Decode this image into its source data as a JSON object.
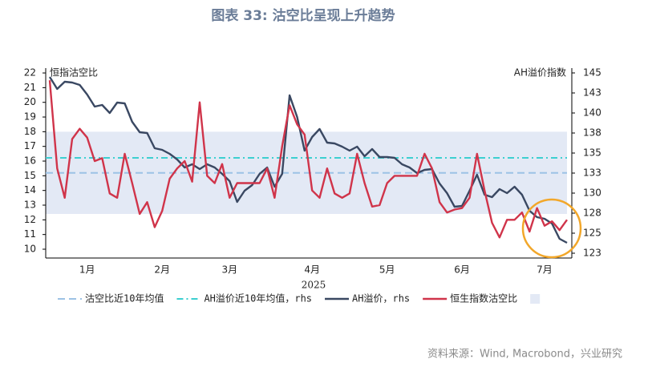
{
  "chart_data": {
    "type": "line",
    "title": "图表 33: 沽空比呈现上升趋势",
    "y_label": "恒指沽空比",
    "y2_label": "AH溢价指数",
    "x_label": "2025",
    "source": "资料来源：Wind, Macrobond，兴业研究",
    "categories": [
      null,
      null,
      null,
      null,
      null,
      "1月",
      null,
      null,
      null,
      null,
      null,
      null,
      null,
      null,
      null,
      "2月",
      null,
      null,
      null,
      null,
      null,
      null,
      null,
      null,
      "3月",
      null,
      null,
      null,
      null,
      null,
      null,
      null,
      null,
      null,
      null,
      "4月",
      null,
      null,
      null,
      null,
      null,
      null,
      null,
      null,
      null,
      "5月",
      null,
      null,
      null,
      null,
      null,
      null,
      null,
      null,
      null,
      "6月",
      null,
      null,
      null,
      null,
      null,
      null,
      null,
      null,
      null,
      null,
      "7月",
      null,
      null,
      null
    ],
    "series": [
      {
        "name": "AH溢价，rhs",
        "color": "#3a4862",
        "axis": "y2",
        "values": [
          144.5,
          143,
          143.9,
          143.8,
          143.5,
          142.3,
          140.8,
          141,
          140,
          141.3,
          141.2,
          138.9,
          137.6,
          137.5,
          135.6,
          135.4,
          134.9,
          134.2,
          133.2,
          133.6,
          133,
          133.6,
          133.2,
          132.4,
          131.5,
          128.9,
          130.3,
          131,
          132.4,
          133.2,
          130.8,
          132.4,
          142.2,
          139.5,
          135.3,
          137,
          138,
          136.3,
          136.2,
          135.8,
          135.3,
          135.8,
          134.6,
          135.5,
          134.5,
          134.5,
          134.4,
          133.6,
          133.2,
          132.5,
          132.9,
          133,
          131.2,
          130,
          128.3,
          128.4,
          130.3,
          132.3,
          129.8,
          129.5,
          130.5,
          130,
          130.8,
          129.8,
          127.8,
          127,
          126.8,
          126.2,
          124.3,
          123.8
        ]
      },
      {
        "name": "恒生指数沽空比",
        "color": "#d0344a",
        "values": [
          21.5,
          15.5,
          13.5,
          17.5,
          18.2,
          17.6,
          16,
          16.2,
          13.8,
          13.5,
          16.5,
          14.5,
          12.4,
          13.2,
          11.5,
          12.6,
          14.8,
          15.5,
          16,
          14.6,
          20,
          15,
          14.5,
          15.8,
          13.5,
          14.5,
          14.5,
          14.5,
          14.5,
          15.5,
          13.5,
          17,
          19.8,
          18.5,
          17.8,
          14,
          13.5,
          15.5,
          13.8,
          13.5,
          13.8,
          16.5,
          14.5,
          12.9,
          13,
          14.5,
          15,
          15,
          15,
          15,
          16.5,
          15.5,
          13.2,
          12.5,
          12.7,
          12.8,
          13.5,
          16.5,
          14,
          11.8,
          10.8,
          12,
          12,
          12.5,
          11.2,
          12.8,
          11.6,
          11.9,
          11.3,
          12
        ]
      }
    ],
    "reference_lines": [
      {
        "name": "沽空比近10年均值",
        "value": 15.2,
        "color": "#9cc2e5"
      },
      {
        "name": "AH溢价近10年均值，rhs",
        "value": 134.4,
        "color": "#3ccfd0",
        "axis": "y2"
      }
    ],
    "band": {
      "range": [
        12.4,
        18
      ],
      "color": "#e3e9f5"
    },
    "ylim": [
      9.4,
      22.33
    ],
    "yticks": [
      10,
      11,
      12,
      13,
      14,
      15,
      16,
      17,
      18,
      19,
      20,
      21,
      22
    ],
    "y2lim": [
      121.9,
      145.6
    ],
    "y2ticks": [
      {
        "value": 122.5,
        "label": "123"
      },
      125,
      {
        "value": 127.5,
        "label": "128"
      },
      130,
      {
        "value": 132.5,
        "label": "133"
      },
      135,
      {
        "value": 137.5,
        "label": "138"
      },
      140,
      {
        "value": 142.5,
        "label": "143"
      },
      145
    ]
  }
}
